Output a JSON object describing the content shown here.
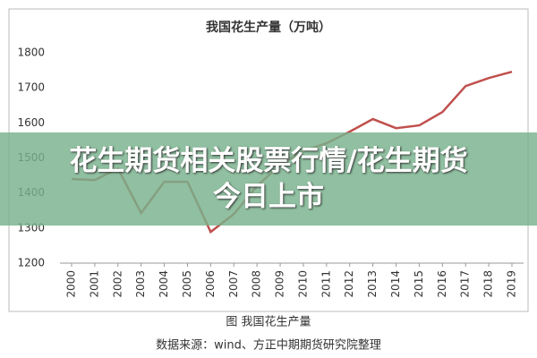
{
  "chart_data": {
    "type": "line",
    "title": "我国花生产量（万吨）",
    "categories": [
      "2000",
      "2001",
      "2002",
      "2003",
      "2004",
      "2005",
      "2006",
      "2007",
      "2008",
      "2009",
      "2010",
      "2011",
      "2012",
      "2013",
      "2014",
      "2015",
      "2016",
      "2017",
      "2018",
      "2019"
    ],
    "series": [
      {
        "color": "#c0504d",
        "values": [
          1440,
          1437,
          1470,
          1343,
          1432,
          1432,
          1289,
          1340,
          1420,
          1480,
          1520,
          1542,
          1575,
          1611,
          1585,
          1593,
          1631,
          1705,
          1728,
          1746
        ]
      }
    ],
    "ylim": [
      1200,
      1800
    ],
    "yticks": [
      1200,
      1300,
      1400,
      1500,
      1600,
      1700,
      1800
    ],
    "caption": "图  我国花生产量",
    "source": "数据来源：wind、方正中期期货研究院整理"
  },
  "banner": {
    "lines": [
      "花生期货相关股票行情/花生期货",
      "今日上市"
    ]
  }
}
